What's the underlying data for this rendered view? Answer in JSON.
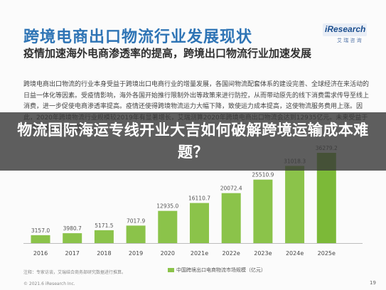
{
  "slide": {
    "title": "跨境电商出口物流行业发展现状",
    "logo_text": "iResearch",
    "logo_sub": "艾 瑞 咨 询",
    "subtitle": "疫情加速海外电商渗透率的提高，跨境出口物流行业加速发展",
    "paragraph": "跨境电商出口物流的行业本身受益于跨境出口电商行业的增量发展，各国间物流配套体系的建设完善、全球经济在来活动的日益一体化等因素。受疫情影响，海外各国开始推行限制外出等政策来进行防控，从而带动原先的线下消费需求传导至线上消费，进一步促使电商渗透率提高。疫情还使得跨境物流运力大幅下降，致使运力成本提高，这使物流服务费用上涨。因此，2020年跨境物流行业规模较2019年有显著增长，艾瑞测算2020年跨境电商出口物流会达到12935亿元。未来受益于出口电商发展不断增加……",
    "banner": "物流国际海运专线开业大吉如何破解跨境运输成本难题？",
    "legend_label": "中国跨境出口电商物流市场规模（亿元）",
    "note": "注释：专家访谈，艾瑞结合商务部研究数据进行推算。",
    "footer": "© 2021.6 iResearch Inc.",
    "page_number": "19",
    "accent_color": "#2e74b5",
    "bar_color": "#8bc34a"
  },
  "chart_data": {
    "type": "bar",
    "categories": [
      "2016",
      "2017",
      "2018",
      "2019",
      "2020",
      "2021e",
      "2022e",
      "2023e",
      "2024e",
      "2025e"
    ],
    "values": [
      3157.0,
      3980.7,
      5171.5,
      7017.9,
      12935.0,
      16110.7,
      20072.4,
      25510.9,
      31018.3,
      36279.2
    ],
    "value_labels": [
      "3157.0",
      "3980.7",
      "5171.5",
      "7017.9",
      "12935.0",
      "16110.7",
      "20072.4",
      "25510.9",
      "31018.3",
      "36279.2"
    ],
    "series": [
      {
        "name": "中国跨境出口电商物流市场规模（亿元）",
        "values": [
          3157.0,
          3980.7,
          5171.5,
          7017.9,
          12935.0,
          16110.7,
          20072.4,
          25510.9,
          31018.3,
          36279.2
        ]
      }
    ],
    "ylim": [
      0,
      36279.2
    ],
    "grid": false,
    "legend_position": "bottom-center"
  }
}
